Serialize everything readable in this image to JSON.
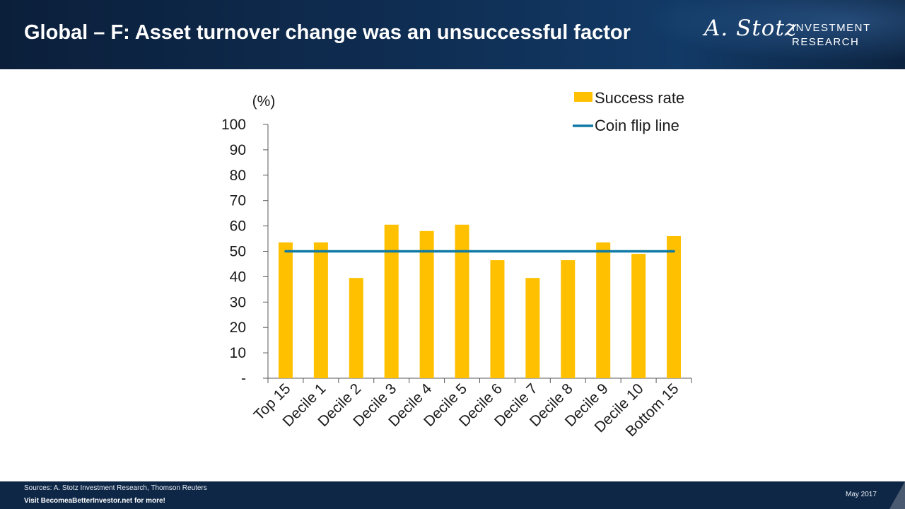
{
  "header": {
    "title": "Global – F: Asset turnover change was an unsuccessful factor",
    "logo_script": "A. Stotz",
    "logo_line1": "INVESTMENT",
    "logo_line2": "RESEARCH"
  },
  "footer": {
    "source": "Sources: A. Stotz Investment Research, Thomson Reuters",
    "visit": "Visit BecomeaBetterInvestor.net  for more!",
    "date": "May 2017"
  },
  "chart_data": {
    "type": "bar",
    "title": "",
    "ylabel": "(%)",
    "xlabel": "",
    "categories": [
      "Top 15",
      "Decile 1",
      "Decile 2",
      "Decile 3",
      "Decile 4",
      "Decile 5",
      "Decile 6",
      "Decile 7",
      "Decile 8",
      "Decile 9",
      "Decile 10",
      "Bottom 15"
    ],
    "series": [
      {
        "name": "Success rate",
        "type": "bar",
        "color": "#FFC000",
        "values": [
          53.5,
          53.5,
          39.5,
          60.5,
          58,
          60.5,
          46.5,
          39.5,
          46.5,
          53.5,
          49,
          56
        ]
      },
      {
        "name": "Coin flip line",
        "type": "line",
        "color": "#0E7AA5",
        "values": [
          50,
          50,
          50,
          50,
          50,
          50,
          50,
          50,
          50,
          50,
          50,
          50
        ]
      }
    ],
    "ylim": [
      0,
      100
    ],
    "yticks": [
      0,
      10,
      20,
      30,
      40,
      50,
      60,
      70,
      80,
      90,
      100
    ],
    "ytick_labels": [
      "-",
      "10",
      "20",
      "30",
      "40",
      "50",
      "60",
      "70",
      "80",
      "90",
      "100"
    ],
    "grid": false,
    "legend_position": "top-right"
  }
}
